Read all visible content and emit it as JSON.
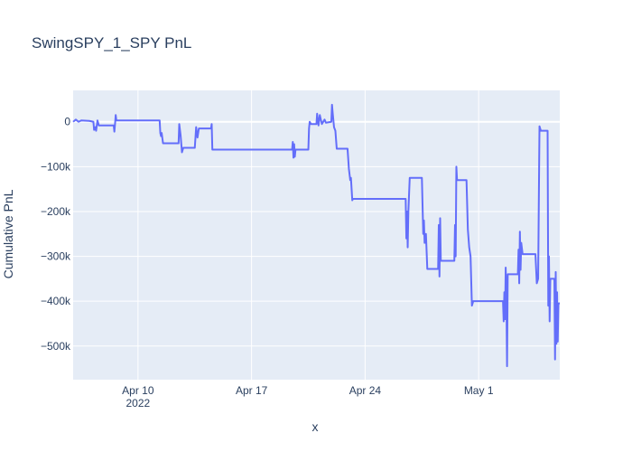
{
  "chart_data": {
    "type": "line",
    "title": "SwingSPY_1_SPY PnL",
    "xlabel": "x",
    "ylabel": "Cumulative PnL",
    "x_tick_labels": [
      {
        "date": "2022-04-10",
        "label": "Apr 10",
        "sublabel": "2022"
      },
      {
        "date": "2022-04-17",
        "label": "Apr 17",
        "sublabel": ""
      },
      {
        "date": "2022-04-24",
        "label": "Apr 24",
        "sublabel": ""
      },
      {
        "date": "2022-05-01",
        "label": "May 1",
        "sublabel": ""
      }
    ],
    "y_ticks": [
      {
        "value": 0,
        "label": "0"
      },
      {
        "value": -100000,
        "label": "−100k"
      },
      {
        "value": -200000,
        "label": "−200k"
      },
      {
        "value": -300000,
        "label": "−300k"
      },
      {
        "value": -400000,
        "label": "−400k"
      },
      {
        "value": -500000,
        "label": "−500k"
      }
    ],
    "xlim": [
      "2022-04-06",
      "2022-05-06"
    ],
    "ylim": [
      -575000,
      70000
    ],
    "grid": true,
    "series": [
      {
        "color": "#636efa",
        "points": [
          [
            "2022-04-06T00:00",
            0
          ],
          [
            "2022-04-06T04:00",
            5000
          ],
          [
            "2022-04-06T08:00",
            0
          ],
          [
            "2022-04-06T12:00",
            3000
          ],
          [
            "2022-04-07T00:00",
            2000
          ],
          [
            "2022-04-07T06:00",
            0
          ],
          [
            "2022-04-07T07:00",
            -18000
          ],
          [
            "2022-04-07T09:00",
            -12000
          ],
          [
            "2022-04-07T10:00",
            -20000
          ],
          [
            "2022-04-07T12:00",
            3000
          ],
          [
            "2022-04-07T14:00",
            -8000
          ],
          [
            "2022-04-08T12:00",
            -8000
          ],
          [
            "2022-04-08T13:00",
            -22000
          ],
          [
            "2022-04-08T14:00",
            -5000
          ],
          [
            "2022-04-08T15:00",
            15000
          ],
          [
            "2022-04-08T16:00",
            3000
          ],
          [
            "2022-04-11T08:00",
            3000
          ],
          [
            "2022-04-11T09:00",
            -25000
          ],
          [
            "2022-04-11T10:00",
            -32000
          ],
          [
            "2022-04-11T11:00",
            -25000
          ],
          [
            "2022-04-11T13:00",
            -48000
          ],
          [
            "2022-04-12T12:00",
            -48000
          ],
          [
            "2022-04-12T13:00",
            -5000
          ],
          [
            "2022-04-12T15:00",
            -30000
          ],
          [
            "2022-04-12T17:00",
            -68000
          ],
          [
            "2022-04-12T19:00",
            -58000
          ],
          [
            "2022-04-13T12:00",
            -58000
          ],
          [
            "2022-04-13T14:00",
            -12000
          ],
          [
            "2022-04-13T16:00",
            -35000
          ],
          [
            "2022-04-13T18:00",
            -15000
          ],
          [
            "2022-04-14T12:00",
            -15000
          ],
          [
            "2022-04-14T13:00",
            -5000
          ],
          [
            "2022-04-14T14:00",
            -62000
          ],
          [
            "2022-04-19T12:00",
            -62000
          ],
          [
            "2022-04-19T13:00",
            -45000
          ],
          [
            "2022-04-19T14:00",
            -80000
          ],
          [
            "2022-04-19T15:00",
            -50000
          ],
          [
            "2022-04-19T16:00",
            -78000
          ],
          [
            "2022-04-19T17:00",
            -62000
          ],
          [
            "2022-04-20T12:00",
            -62000
          ],
          [
            "2022-04-20T13:00",
            -15000
          ],
          [
            "2022-04-20T14:00",
            0
          ],
          [
            "2022-04-20T16:00",
            -5000
          ],
          [
            "2022-04-21T00:00",
            -5000
          ],
          [
            "2022-04-21T01:00",
            18000
          ],
          [
            "2022-04-21T03:00",
            -8000
          ],
          [
            "2022-04-21T05:00",
            15000
          ],
          [
            "2022-04-21T08:00",
            -5000
          ],
          [
            "2022-04-21T12:00",
            5000
          ],
          [
            "2022-04-21T14:00",
            -2000
          ],
          [
            "2022-04-21T22:00",
            0
          ],
          [
            "2022-04-21T23:00",
            38000
          ],
          [
            "2022-04-22T00:00",
            20000
          ],
          [
            "2022-04-22T02:00",
            -12000
          ],
          [
            "2022-04-22T04:00",
            -20000
          ],
          [
            "2022-04-22T06:00",
            -60000
          ],
          [
            "2022-04-22T22:00",
            -60000
          ],
          [
            "2022-04-23T00:00",
            -105000
          ],
          [
            "2022-04-23T02:00",
            -130000
          ],
          [
            "2022-04-23T03:00",
            -125000
          ],
          [
            "2022-04-23T05:00",
            -175000
          ],
          [
            "2022-04-23T06:00",
            -172000
          ],
          [
            "2022-04-26T12:00",
            -172000
          ],
          [
            "2022-04-26T13:00",
            -260000
          ],
          [
            "2022-04-26T14:00",
            -200000
          ],
          [
            "2022-04-26T15:00",
            -280000
          ],
          [
            "2022-04-26T16:00",
            -200000
          ],
          [
            "2022-04-26T18:00",
            -125000
          ],
          [
            "2022-04-27T12:00",
            -125000
          ],
          [
            "2022-04-27T14:00",
            -250000
          ],
          [
            "2022-04-27T15:00",
            -220000
          ],
          [
            "2022-04-27T16:00",
            -270000
          ],
          [
            "2022-04-27T18:00",
            -250000
          ],
          [
            "2022-04-27T20:00",
            -328000
          ],
          [
            "2022-04-28T12:00",
            -328000
          ],
          [
            "2022-04-28T13:00",
            -230000
          ],
          [
            "2022-04-28T14:00",
            -345000
          ],
          [
            "2022-04-28T15:00",
            -215000
          ],
          [
            "2022-04-28T16:00",
            -310000
          ],
          [
            "2022-04-29T12:00",
            -310000
          ],
          [
            "2022-04-29T13:00",
            -230000
          ],
          [
            "2022-04-29T14:00",
            -300000
          ],
          [
            "2022-04-29T15:00",
            -100000
          ],
          [
            "2022-04-29T16:00",
            -130000
          ],
          [
            "2022-04-30T06:00",
            -130000
          ],
          [
            "2022-04-30T08:00",
            -240000
          ],
          [
            "2022-04-30T10:00",
            -280000
          ],
          [
            "2022-04-30T12:00",
            -300000
          ],
          [
            "2022-04-30T14:00",
            -410000
          ],
          [
            "2022-04-30T16:00",
            -400000
          ],
          [
            "2022-05-02T12:00",
            -400000
          ],
          [
            "2022-05-02T13:00",
            -445000
          ],
          [
            "2022-05-02T14:00",
            -380000
          ],
          [
            "2022-05-02T15:00",
            -440000
          ],
          [
            "2022-05-02T16:00",
            -325000
          ],
          [
            "2022-05-02T17:00",
            -395000
          ],
          [
            "2022-05-02T18:00",
            -545000
          ],
          [
            "2022-05-02T19:00",
            -340000
          ],
          [
            "2022-05-03T10:00",
            -340000
          ],
          [
            "2022-05-03T11:00",
            -285000
          ],
          [
            "2022-05-03T12:00",
            -360000
          ],
          [
            "2022-05-03T13:00",
            -245000
          ],
          [
            "2022-05-03T14:00",
            -330000
          ],
          [
            "2022-05-03T15:00",
            -270000
          ],
          [
            "2022-05-03T17:00",
            -295000
          ],
          [
            "2022-05-04T12:00",
            -295000
          ],
          [
            "2022-05-04T14:00",
            -360000
          ],
          [
            "2022-05-04T16:00",
            -350000
          ],
          [
            "2022-05-04T18:00",
            -10000
          ],
          [
            "2022-05-04T20:00",
            -20000
          ],
          [
            "2022-05-05T06:00",
            -20000
          ],
          [
            "2022-05-05T07:00",
            -410000
          ],
          [
            "2022-05-05T08:00",
            -300000
          ],
          [
            "2022-05-05T09:00",
            -445000
          ],
          [
            "2022-05-05T10:00",
            -350000
          ],
          [
            "2022-05-05T16:00",
            -350000
          ],
          [
            "2022-05-05T17:00",
            -530000
          ],
          [
            "2022-05-05T18:00",
            -335000
          ],
          [
            "2022-05-05T19:00",
            -495000
          ],
          [
            "2022-05-05T20:00",
            -380000
          ],
          [
            "2022-05-05T21:00",
            -490000
          ],
          [
            "2022-05-05T22:00",
            -405000
          ],
          [
            "2022-05-06T00:00",
            -405000
          ]
        ]
      }
    ],
    "colors": {
      "plot_bg": "#e5ecf6",
      "paper_bg": "#ffffff",
      "grid": "#ffffff",
      "text": "#2a3f5f",
      "line": "#636efa"
    }
  }
}
